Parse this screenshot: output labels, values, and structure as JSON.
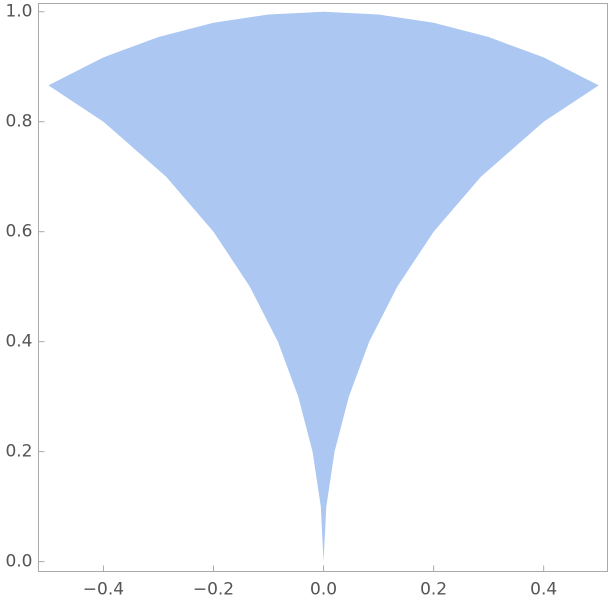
{
  "chart_data": {
    "type": "region",
    "color": "#abc7f2",
    "x": [
      -0.5,
      -0.4,
      -0.3,
      -0.2,
      -0.1,
      0,
      0.1,
      0.2,
      0.3,
      0.4,
      0.5,
      0.4,
      0.286,
      0.2,
      0.134,
      0.083,
      0.046,
      0.02,
      0.005,
      0,
      -0.005,
      -0.02,
      -0.046,
      -0.083,
      -0.134,
      -0.2,
      -0.286,
      -0.4
    ],
    "y": [
      0.866,
      0.917,
      0.954,
      0.98,
      0.995,
      1,
      0.995,
      0.98,
      0.954,
      0.917,
      0.866,
      0.8,
      0.7,
      0.6,
      0.5,
      0.4,
      0.3,
      0.2,
      0.1,
      0,
      0.1,
      0.2,
      0.3,
      0.4,
      0.5,
      0.6,
      0.7,
      0.8
    ],
    "xlim": [
      -0.518,
      0.516
    ],
    "ylim": [
      -0.018,
      1.015
    ],
    "xticks": [
      {
        "value": -0.4,
        "label": "−0.4"
      },
      {
        "value": -0.2,
        "label": "−0.2"
      },
      {
        "value": 0,
        "label": "0.0"
      },
      0.2,
      0.4
    ],
    "yticks": [
      {
        "value": 0,
        "label": "0.0"
      },
      0.2,
      0.4,
      0.6,
      0.8,
      {
        "value": 1,
        "label": "1.0"
      }
    ]
  }
}
